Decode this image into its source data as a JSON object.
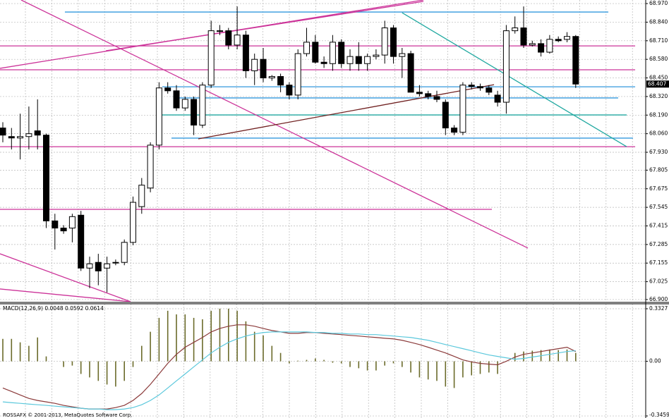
{
  "chart_data": [
    {
      "type": "candlestick",
      "open": [
        68.1,
        68.04,
        68.03,
        68.04,
        68.08,
        68.05,
        67.45,
        67.4,
        67.4,
        67.49,
        67.12,
        67.16,
        67.12,
        67.16,
        67.16,
        67.3,
        67.55,
        67.68,
        67.98,
        68.38,
        68.36,
        68.24,
        68.3,
        68.12,
        68.4,
        68.78,
        68.78,
        68.68,
        68.75,
        68.5,
        68.58,
        68.45,
        68.46,
        68.4,
        68.33,
        68.62,
        68.7,
        68.56,
        68.55,
        68.7,
        68.55,
        68.6,
        68.55,
        68.6,
        68.61,
        68.8,
        68.6,
        68.62,
        68.35,
        68.34,
        68.32,
        68.28,
        68.1,
        68.07,
        68.4,
        68.39,
        68.38,
        68.33,
        68.28,
        68.78,
        68.8,
        68.68,
        68.69,
        68.63,
        68.72,
        68.72,
        68.74
      ],
      "high": [
        68.14,
        68.1,
        68.2,
        68.25,
        68.3,
        68.06,
        67.5,
        67.42,
        67.5,
        67.52,
        67.2,
        67.22,
        67.2,
        67.18,
        67.32,
        67.62,
        67.75,
        68.0,
        68.42,
        68.42,
        68.4,
        68.32,
        68.32,
        68.42,
        68.85,
        68.82,
        68.8,
        68.95,
        68.78,
        68.62,
        68.66,
        68.47,
        68.48,
        68.42,
        68.65,
        68.8,
        68.75,
        68.6,
        68.75,
        68.72,
        68.65,
        68.7,
        68.62,
        68.65,
        68.85,
        68.82,
        68.66,
        68.64,
        68.4,
        68.36,
        68.36,
        68.3,
        68.12,
        68.42,
        68.42,
        68.41,
        68.4,
        68.36,
        68.82,
        68.88,
        68.95,
        68.71,
        68.72,
        68.75,
        68.74,
        68.77,
        68.75
      ],
      "low": [
        68.0,
        67.95,
        67.88,
        67.95,
        67.95,
        67.4,
        67.25,
        67.36,
        67.3,
        67.1,
        66.98,
        67.0,
        66.95,
        67.14,
        67.14,
        67.28,
        67.5,
        67.65,
        67.95,
        68.34,
        68.22,
        68.22,
        68.05,
        68.1,
        68.38,
        68.75,
        68.65,
        68.65,
        68.45,
        68.4,
        68.42,
        68.43,
        68.35,
        68.3,
        68.3,
        68.6,
        68.55,
        68.52,
        68.5,
        68.52,
        68.5,
        68.5,
        68.5,
        68.58,
        68.55,
        68.55,
        68.45,
        68.35,
        68.32,
        68.3,
        68.28,
        68.05,
        68.05,
        68.05,
        68.37,
        68.36,
        68.33,
        68.25,
        68.2,
        68.76,
        68.66,
        68.67,
        68.6,
        68.62,
        68.7,
        68.7,
        68.38
      ],
      "close": [
        68.05,
        68.03,
        68.04,
        68.06,
        68.05,
        67.45,
        67.4,
        67.38,
        67.48,
        67.12,
        67.15,
        67.1,
        67.15,
        67.16,
        67.3,
        67.58,
        67.7,
        67.98,
        68.38,
        68.36,
        68.24,
        68.3,
        68.12,
        68.4,
        68.78,
        68.78,
        68.68,
        68.75,
        68.5,
        68.58,
        68.45,
        68.46,
        68.4,
        68.33,
        68.62,
        68.7,
        68.56,
        68.55,
        68.7,
        68.55,
        68.6,
        68.55,
        68.6,
        68.61,
        68.8,
        68.6,
        68.62,
        68.35,
        68.34,
        68.32,
        68.3,
        68.1,
        68.07,
        68.4,
        68.39,
        68.38,
        68.35,
        68.28,
        68.78,
        68.8,
        68.68,
        68.69,
        68.63,
        68.72,
        68.71,
        68.74,
        68.407
      ],
      "last_price": 68.407,
      "ylim": [
        66.885,
        68.995
      ],
      "yticks": [
        {
          "value": 68.97,
          "label": "68.970"
        },
        {
          "value": 68.84,
          "label": "68.840"
        },
        {
          "value": 68.71,
          "label": "68.710"
        },
        {
          "value": 68.58,
          "label": "68.580"
        },
        {
          "value": 68.45,
          "label": "68.450"
        },
        {
          "value": 68.32,
          "label": "68.320"
        },
        {
          "value": 68.19,
          "label": "68.190"
        },
        {
          "value": 68.06,
          "label": "68.060"
        },
        {
          "value": 67.93,
          "label": "67.930"
        },
        67.805,
        67.675,
        67.545,
        67.415,
        67.285,
        67.155,
        67.025,
        {
          "value": 66.9,
          "label": "66.900"
        }
      ],
      "grid": true,
      "lines": [
        {
          "color": "#3399dd",
          "x": [
            7.15,
            69.76
          ],
          "y": [
            68.911,
            68.911
          ]
        },
        {
          "color": "#cc3399",
          "x": [
            -0.33,
            72.85
          ],
          "y": [
            68.674,
            68.674
          ]
        },
        {
          "color": "#cc3399",
          "x": [
            -0.33,
            72.85
          ],
          "y": [
            68.507,
            68.507
          ]
        },
        {
          "color": "#3399dd",
          "x": [
            18.37,
            72.85
          ],
          "y": [
            68.388,
            68.388
          ]
        },
        {
          "color": "#3399dd",
          "x": [
            19.84,
            70.89
          ],
          "y": [
            68.31,
            68.31
          ]
        },
        {
          "color": "#20a8a0",
          "x": [
            18.37,
            71.87
          ],
          "y": [
            68.191,
            68.191
          ]
        },
        {
          "color": "#3399dd",
          "x": [
            19.43,
            72.6
          ],
          "y": [
            68.029,
            68.029
          ]
        },
        {
          "color": "#cc3399",
          "x": [
            -0.33,
            72.85
          ],
          "y": [
            67.969,
            67.969
          ]
        },
        {
          "color": "#cc3399",
          "x": [
            -0.33,
            56.34
          ],
          "y": [
            67.531,
            67.531
          ]
        },
        {
          "color": "#cc3399",
          "x": [
            -0.33,
            48.46
          ],
          "y": [
            68.517,
            68.995
          ]
        },
        {
          "color": "#cc3399",
          "x": [
            11.87,
            48.46
          ],
          "y": [
            68.64,
            68.985
          ]
        },
        {
          "color": "#cc3399",
          "x": [
            2.11,
            60.49
          ],
          "y": [
            68.995,
            67.26
          ]
        },
        {
          "color": "#cc3399",
          "x": [
            -0.33,
            14.72
          ],
          "y": [
            67.22,
            66.885
          ]
        },
        {
          "color": "#cc3399",
          "x": [
            -0.33,
            14.72
          ],
          "y": [
            66.974,
            66.885
          ]
        },
        {
          "color": "#20a8a0",
          "x": [
            46.0,
            71.87
          ],
          "y": [
            68.906,
            67.969
          ]
        },
        {
          "color": "#702020",
          "x": [
            22.52,
            56.59
          ],
          "y": [
            68.024,
            68.403
          ]
        }
      ]
    },
    {
      "type": "macd",
      "title": "MACD(12,26,9) 0.0048 0.0592 0.0614",
      "footer": "ROSSAFX © 2001-2013, MetaQuotes Software Corp.",
      "ylim": [
        -0.359,
        0.364
      ],
      "yticks": [
        0.3327,
        {
          "value": 0,
          "label": "0.00"
        },
        -0.3459
      ],
      "histogram": {
        "color": "#6b6b2a",
        "values": [
          0.142,
          0.142,
          0.12,
          0.098,
          0.151,
          0.031,
          0,
          -0.036,
          -0.027,
          -0.08,
          -0.102,
          -0.124,
          -0.147,
          -0.16,
          -0.124,
          -0.036,
          0.098,
          0.187,
          0.275,
          0.32,
          0.297,
          0.297,
          0.275,
          0.266,
          0.32,
          0.333,
          0.333,
          0.32,
          0.253,
          0.187,
          0.164,
          0.098,
          0.053,
          -0.013,
          0.004,
          0.009,
          0.018,
          0.009,
          -0.009,
          -0.013,
          -0.036,
          -0.044,
          -0.058,
          -0.058,
          -0.027,
          -0.013,
          -0.036,
          -0.071,
          -0.102,
          -0.115,
          -0.124,
          -0.16,
          -0.169,
          -0.102,
          -0.089,
          -0.08,
          -0.071,
          -0.08,
          0,
          0.053,
          0.062,
          0.067,
          0.071,
          0.075,
          0.071,
          0.075,
          0.053
        ]
      },
      "lines": [
        {
          "color": "#8b3a3a",
          "values": [
            -0.169,
            -0.191,
            -0.213,
            -0.235,
            -0.248,
            -0.257,
            -0.266,
            -0.279,
            -0.288,
            -0.297,
            -0.302,
            -0.302,
            -0.302,
            -0.293,
            -0.279,
            -0.248,
            -0.204,
            -0.146,
            -0.08,
            -0.013,
            0.044,
            0.089,
            0.12,
            0.151,
            0.186,
            0.208,
            0.222,
            0.231,
            0.231,
            0.222,
            0.208,
            0.195,
            0.186,
            0.177,
            0.177,
            0.182,
            0.182,
            0.177,
            0.173,
            0.169,
            0.164,
            0.16,
            0.155,
            0.151,
            0.146,
            0.142,
            0.133,
            0.12,
            0.106,
            0.089,
            0.071,
            0.053,
            0.031,
            0.009,
            -0.004,
            -0.013,
            -0.018,
            -0.022,
            0,
            0.027,
            0.044,
            0.053,
            0.062,
            0.071,
            0.08,
            0.089,
            0.062
          ]
        },
        {
          "color": "#5bc8dc",
          "values": [
            -0.257,
            -0.262,
            -0.266,
            -0.271,
            -0.275,
            -0.279,
            -0.284,
            -0.288,
            -0.293,
            -0.297,
            -0.302,
            -0.302,
            -0.306,
            -0.306,
            -0.302,
            -0.293,
            -0.275,
            -0.248,
            -0.213,
            -0.169,
            -0.124,
            -0.08,
            -0.035,
            0.009,
            0.053,
            0.089,
            0.12,
            0.142,
            0.16,
            0.173,
            0.182,
            0.186,
            0.186,
            0.186,
            0.186,
            0.186,
            0.182,
            0.182,
            0.177,
            0.177,
            0.173,
            0.173,
            0.169,
            0.169,
            0.164,
            0.16,
            0.155,
            0.151,
            0.142,
            0.133,
            0.12,
            0.106,
            0.093,
            0.08,
            0.067,
            0.053,
            0.04,
            0.031,
            0.022,
            0.013,
            0.018,
            0.027,
            0.035,
            0.044,
            0.053,
            0.062,
            0.067
          ]
        }
      ]
    }
  ]
}
